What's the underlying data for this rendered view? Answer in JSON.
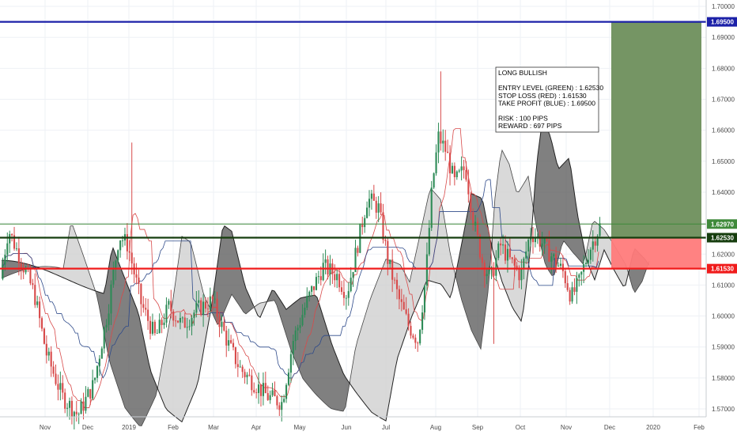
{
  "chart_data": {
    "type": "candlestick",
    "y_axis": {
      "ylim": [
        1.5655,
        1.7015
      ],
      "ticks": [
        "1.57000",
        "1.58000",
        "1.59000",
        "1.60000",
        "1.61000",
        "1.62000",
        "1.63000",
        "1.64000",
        "1.65000",
        "1.66000",
        "1.67000",
        "1.68000",
        "1.69000",
        "1.70000"
      ]
    },
    "x_axis": {
      "ticks": [
        "Nov",
        "Dec",
        "2019",
        "Feb",
        "Mar",
        "Apr",
        "May",
        "Jun",
        "Jul",
        "Aug",
        "Sep",
        "Oct",
        "Nov",
        "Dec",
        "2020",
        "Feb"
      ]
    },
    "grid": true,
    "levels": [
      {
        "name": "take_profit",
        "label": "1.69500",
        "value": 1.695,
        "color": "#1c21a8"
      },
      {
        "name": "upper_line",
        "label": "1.62970",
        "value": 1.6297,
        "color": "#3f8a3a"
      },
      {
        "name": "entry",
        "label": "1.62530",
        "value": 1.6253,
        "color": "#163d0e"
      },
      {
        "name": "stop_loss",
        "label": "1.61530",
        "value": 1.6153,
        "color": "#f01b1b"
      }
    ],
    "zones": {
      "profit_color": "#6e8f5c",
      "loss_color": "#ff7b7b"
    },
    "annotation": {
      "lines": [
        "LONG BULLISH",
        "",
        "ENTRY LEVEL (GREEN) : 1.62530",
        "STOP LOSS (RED) : 1.61530",
        "TAKE PROFIT (BLUE) : 1.69500",
        "",
        "RISK : 100 PIPS",
        "REWARD : 697 PIPS"
      ]
    },
    "colors": {
      "up": "#2e8b57",
      "down": "#d84a4a",
      "tenkan": "#d84a4a",
      "kijun": "#2e4a8a",
      "chikou": "#2e8b57",
      "cloud_bear": "#555555",
      "cloud_bull": "#d0d0d0"
    }
  }
}
